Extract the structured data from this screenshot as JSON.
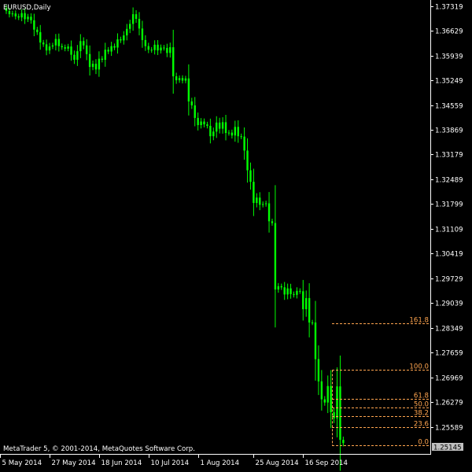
{
  "colors": {
    "background": "#000000",
    "axis": "#ffffff",
    "candle": "#00ff00",
    "fibo": "#ffa54f",
    "text": "#ffffff",
    "price_tag_bg": "#c0c0c0",
    "price_tag_text": "#000000"
  },
  "header": {
    "symbol_label": "EURUSD,Daily"
  },
  "footer": {
    "copyright": "MetaTrader 5, © 2001-2014, MetaQuotes Software Corp."
  },
  "current_price": "1.25145",
  "chart_data": {
    "type": "candlestick",
    "ylim": [
      1.24948,
      1.37398
    ],
    "y_ticks": [
      "1.37319",
      "1.36629",
      "1.35939",
      "1.35249",
      "1.34559",
      "1.33869",
      "1.33179",
      "1.32489",
      "1.31799",
      "1.31109",
      "1.30419",
      "1.29729",
      "1.29039",
      "1.28349",
      "1.27659",
      "1.26969",
      "1.26279",
      "1.25589"
    ],
    "x_ticks": [
      "5 May 2014",
      "27 May 2014",
      "18 Jun 2014",
      "10 Jul 2014",
      "1 Aug 2014",
      "25 Aug 2014",
      "16 Sep 2014"
    ],
    "x_tick_bar_index": [
      0,
      16,
      32,
      48,
      64,
      82,
      98
    ],
    "bar_count": 110,
    "series": {
      "close": [
        1.3718,
        1.3709,
        1.3711,
        1.3703,
        1.37,
        1.3712,
        1.3695,
        1.3702,
        1.3692,
        1.3666,
        1.3659,
        1.363,
        1.3625,
        1.3608,
        1.3619,
        1.3622,
        1.364,
        1.362,
        1.3617,
        1.3613,
        1.3619,
        1.3596,
        1.3582,
        1.3606,
        1.3634,
        1.3622,
        1.3598,
        1.3562,
        1.3571,
        1.3555,
        1.3585,
        1.3582,
        1.361,
        1.3605,
        1.362,
        1.3616,
        1.3639,
        1.3636,
        1.365,
        1.3668,
        1.3682,
        1.3709,
        1.3696,
        1.3669,
        1.3637,
        1.362,
        1.361,
        1.3609,
        1.3624,
        1.3608,
        1.3616,
        1.3615,
        1.3601,
        1.3617,
        1.3536,
        1.3525,
        1.3531,
        1.3524,
        1.353,
        1.3466,
        1.3455,
        1.342,
        1.34,
        1.341,
        1.3402,
        1.3398,
        1.3369,
        1.3382,
        1.3407,
        1.339,
        1.3408,
        1.3378,
        1.3379,
        1.3371,
        1.3395,
        1.3369,
        1.3368,
        1.3329,
        1.3274,
        1.3242,
        1.3183,
        1.3198,
        1.3178,
        1.318,
        1.3182,
        1.3132,
        1.3127,
        1.2942,
        1.2951,
        1.2948,
        1.2928,
        1.2945,
        1.2929,
        1.2927,
        1.2938,
        1.2937,
        1.2887,
        1.2918,
        1.285,
        1.285,
        1.2748,
        1.2686,
        1.2636,
        1.2627,
        1.2673,
        1.26,
        1.2583,
        1.2672,
        1.2523,
        1.2514
      ]
    },
    "fibo_levels": [
      {
        "label": "161.8",
        "price": 1.28472
      },
      {
        "label": "100.0",
        "price": 1.27176
      },
      {
        "label": "61.8",
        "price": 1.26375
      },
      {
        "label": "50.0",
        "price": 1.26128
      },
      {
        "label": "38.2",
        "price": 1.2588
      },
      {
        "label": "23.6",
        "price": 1.25574
      },
      {
        "label": "0.0",
        "price": 1.2508
      }
    ],
    "grid": false
  }
}
